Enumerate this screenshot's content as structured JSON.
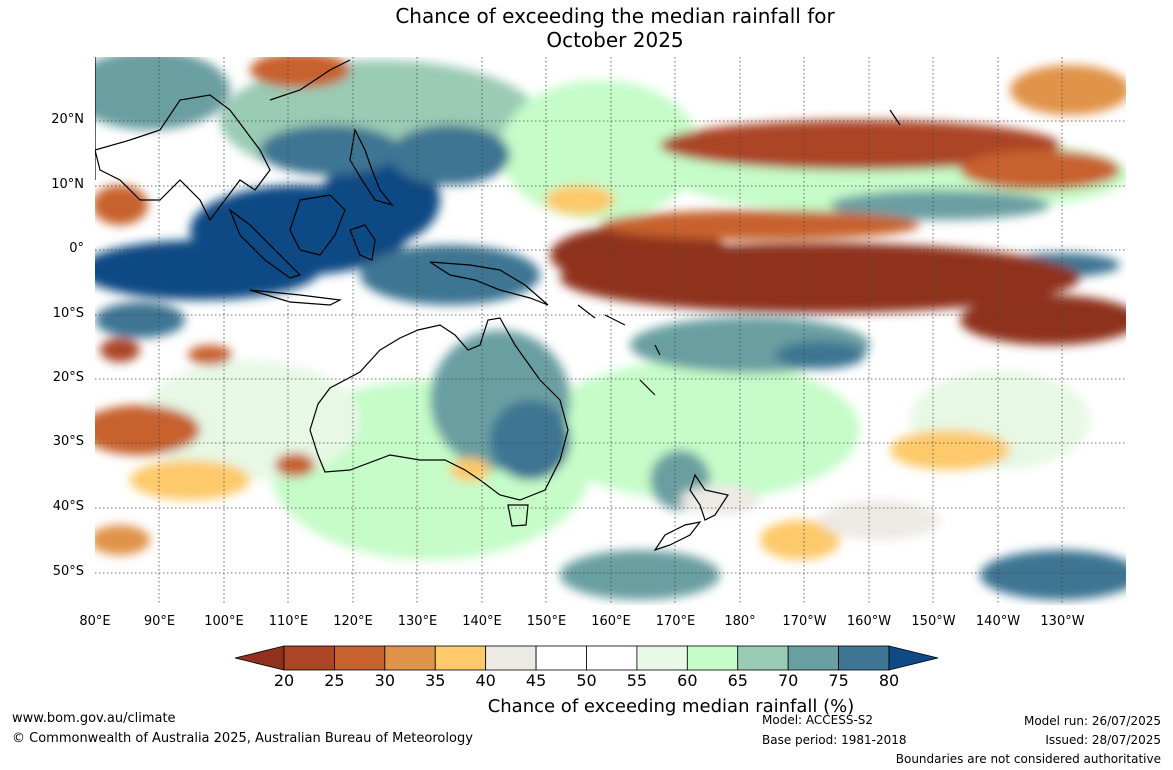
{
  "title": {
    "line1": "Chance of exceeding the median rainfall for",
    "line2": "October 2025"
  },
  "map": {
    "lat_labels": [
      "20°N",
      "10°N",
      "0°",
      "10°S",
      "20°S",
      "30°S",
      "40°S",
      "50°S"
    ],
    "lon_labels": [
      "80°E",
      "90°E",
      "100°E",
      "110°E",
      "120°E",
      "130°E",
      "140°E",
      "150°E",
      "160°E",
      "170°E",
      "180°",
      "170°W",
      "160°W",
      "150°W",
      "140°W",
      "130°W"
    ]
  },
  "colorbar": {
    "title": "Chance of exceeding median rainfall (%)",
    "ticks": [
      "20",
      "25",
      "30",
      "35",
      "40",
      "45",
      "50",
      "55",
      "60",
      "65",
      "70",
      "75",
      "80"
    ],
    "colors": [
      "#8f311d",
      "#ac4526",
      "#c7622f",
      "#e0934a",
      "#fdc96a",
      "#eceae4",
      "#ffffff",
      "#ffffff",
      "#e7f8e5",
      "#c5fcc8",
      "#9acbb4",
      "#6a9fa2",
      "#3e7593",
      "#0f4a84"
    ]
  },
  "footer": {
    "website": "www.bom.gov.au/climate",
    "copyright": "© Commonwealth of Australia 2025, Australian Bureau of Meteorology",
    "model": "Model: ACCESS-S2",
    "base_period": "Base period: 1981-2018",
    "model_run": "Model run: 26/07/2025",
    "issued": "Issued: 28/07/2025",
    "disclaimer": "Boundaries are not considered authoritative"
  }
}
